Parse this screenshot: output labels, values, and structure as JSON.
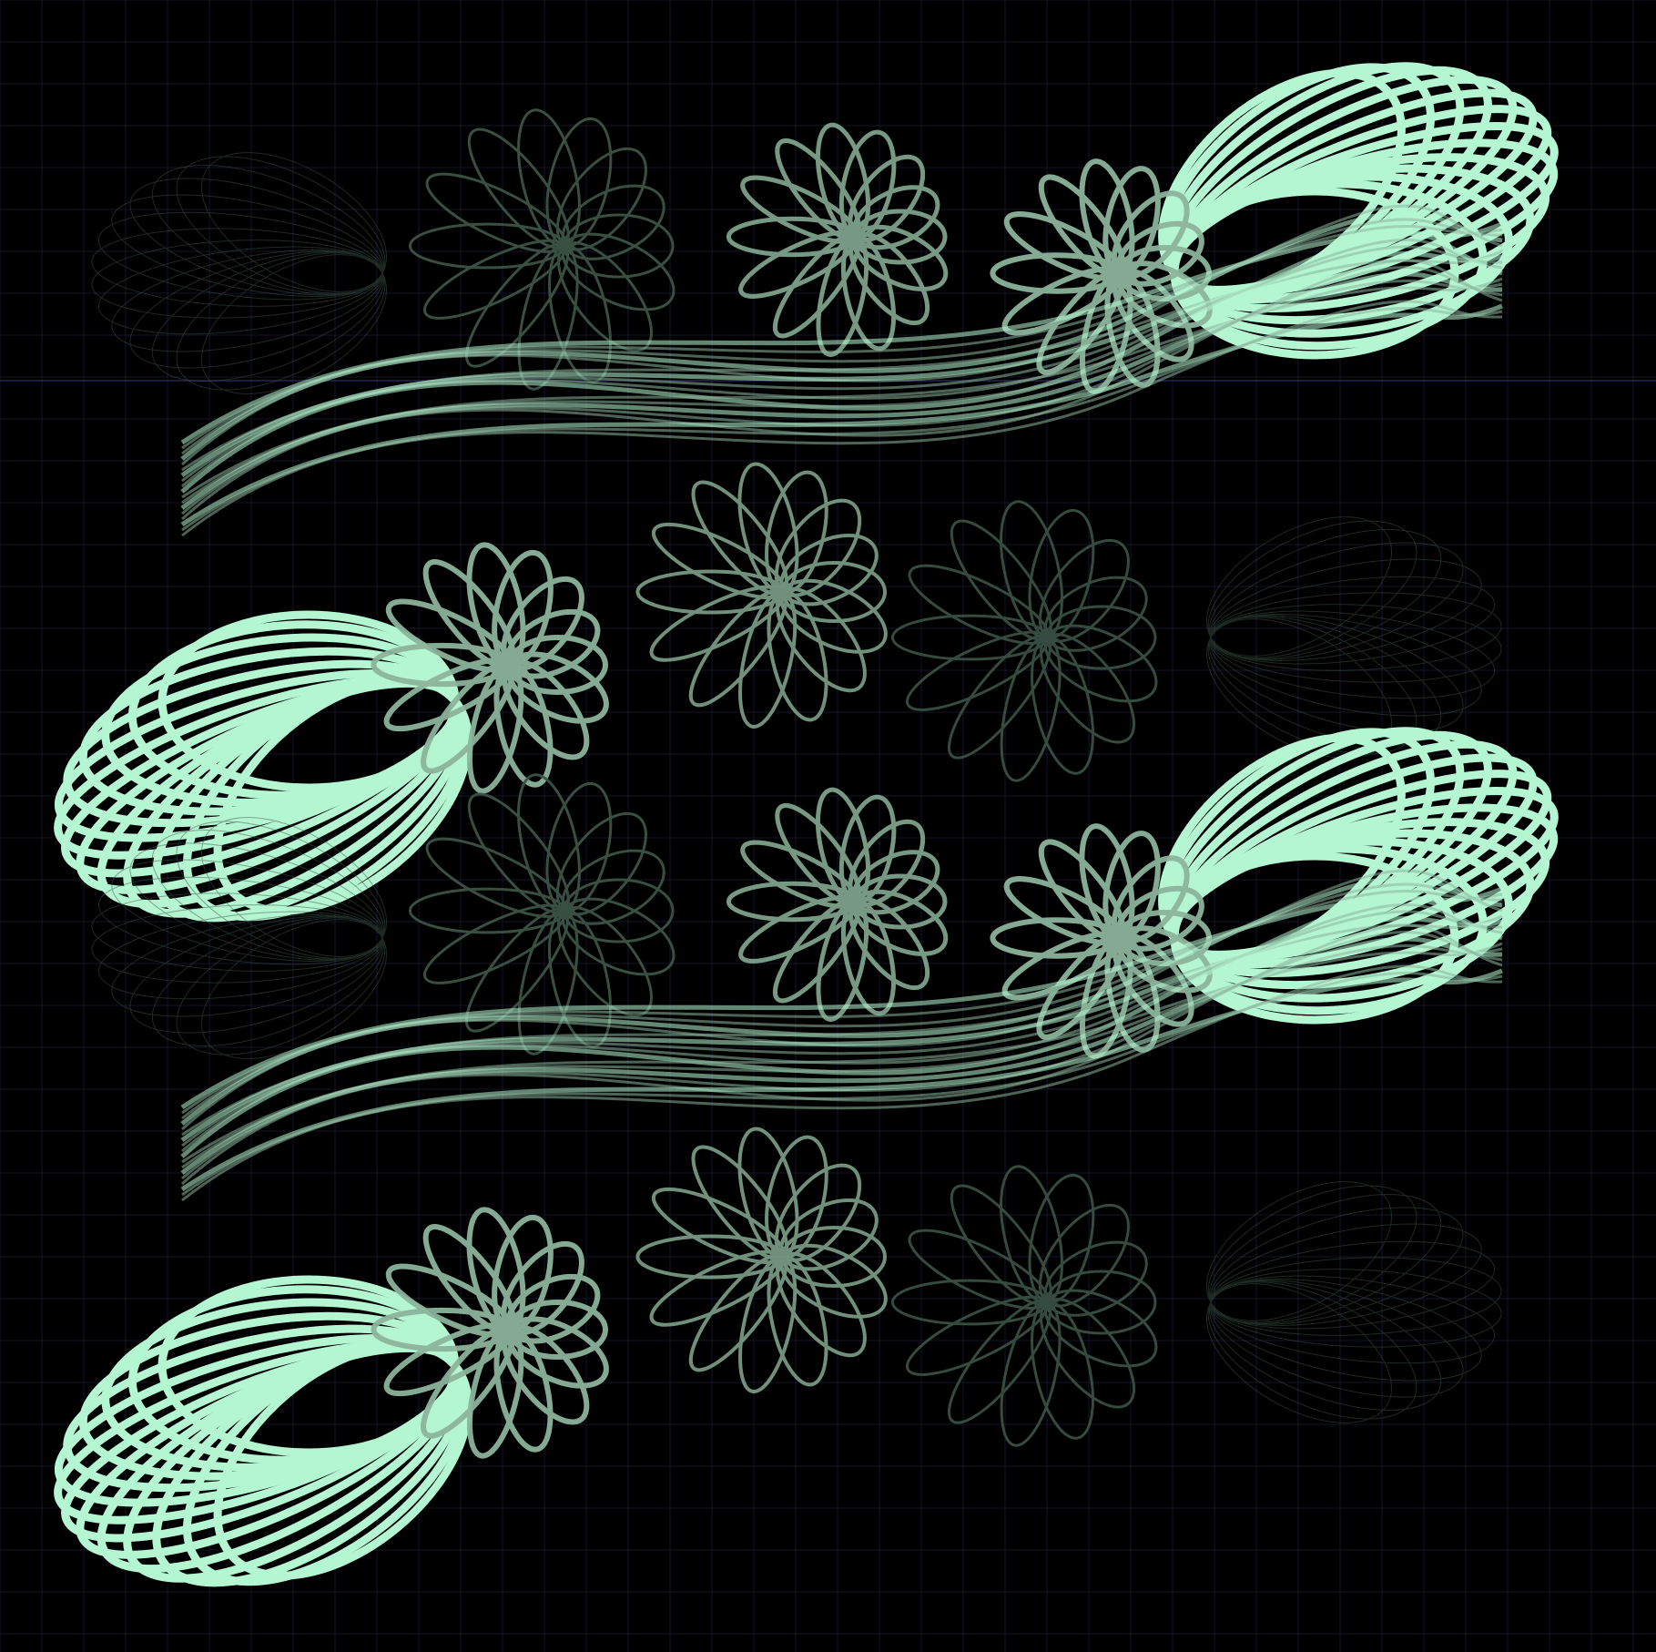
{
  "artwork": {
    "description_visible_text": "",
    "palette": {
      "background": "#000000",
      "grid": "#141428",
      "grid_accent": "#242450",
      "stroke_bright": "#b4f5d2",
      "stroke_mid": "#8cb49c",
      "stroke_dark": "#3c5446"
    },
    "motif": {
      "repeats_vertical": 2,
      "loop_clusters_per_repeat": 8,
      "loops_per_cluster": 14
    }
  }
}
